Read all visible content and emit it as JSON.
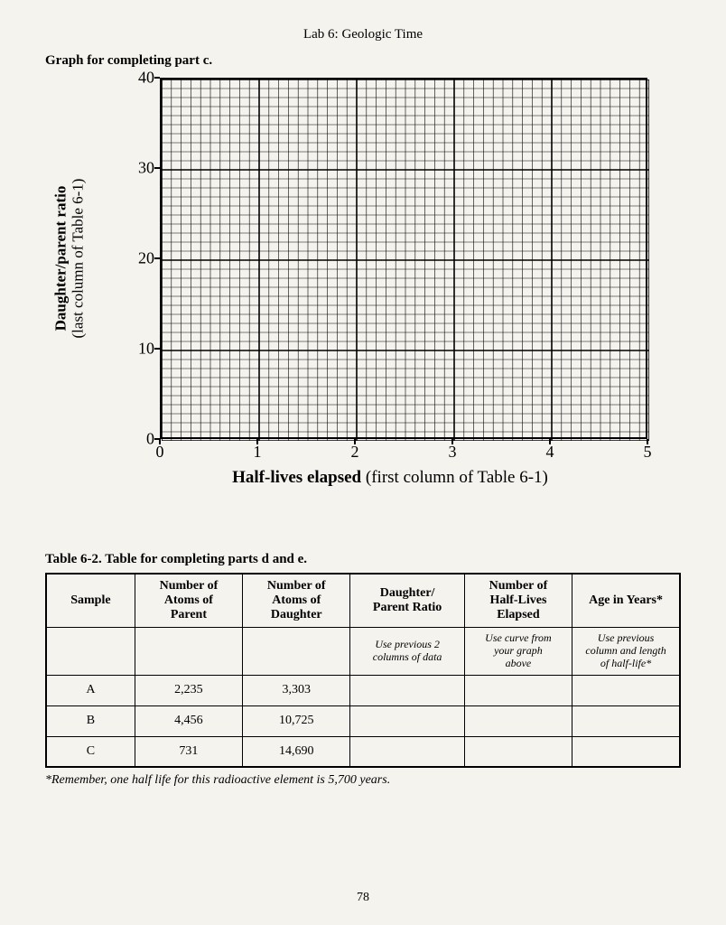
{
  "header": {
    "title": "Lab 6: Geologic Time"
  },
  "subtitle": "Graph for completing part c.",
  "chart": {
    "type": "grid",
    "xlim": [
      0,
      5
    ],
    "ylim": [
      0,
      40
    ],
    "x_major_step": 1,
    "y_major_step": 10,
    "x_minor_divisions": 10,
    "y_minor_divisions": 10,
    "x_ticks": [
      "0",
      "1",
      "2",
      "3",
      "4",
      "5"
    ],
    "y_ticks": [
      "0",
      "10",
      "20",
      "30",
      "40"
    ],
    "y_label_line1": "Daughter/parent ratio",
    "y_label_line2": "(last column of Table 6-1)",
    "x_label_bold": "Half-lives elapsed",
    "x_label_rest": " (first column of Table 6-1)",
    "major_line_color": "#000000",
    "minor_line_color": "#000000",
    "major_line_width": 1.6,
    "minor_line_width": 0.6,
    "background_color": "#f5f3ee",
    "tick_fontsize": 18,
    "axis_label_fontsize": 18
  },
  "table": {
    "caption": "Table 6-2. Table for completing parts d and e.",
    "columns": [
      "Sample",
      "Number of Atoms of Parent",
      "Number of Atoms of Daughter",
      "Daughter/ Parent Ratio",
      "Number of Half-Lives Elapsed",
      "Age in Years*"
    ],
    "hint_row": [
      "",
      "",
      "",
      "Use previous 2 columns of data",
      "Use curve from your graph above",
      "Use previous column and length of half-life*"
    ],
    "rows": [
      [
        "A",
        "2,235",
        "3,303",
        "",
        "",
        ""
      ],
      [
        "B",
        "4,456",
        "10,725",
        "",
        "",
        ""
      ],
      [
        "C",
        "731",
        "14,690",
        "",
        "",
        ""
      ]
    ],
    "col_widths_pct": [
      14,
      17,
      17,
      18,
      17,
      17
    ]
  },
  "footnote": "*Remember, one half life for this radioactive element is 5,700 years.",
  "page_number": "78"
}
